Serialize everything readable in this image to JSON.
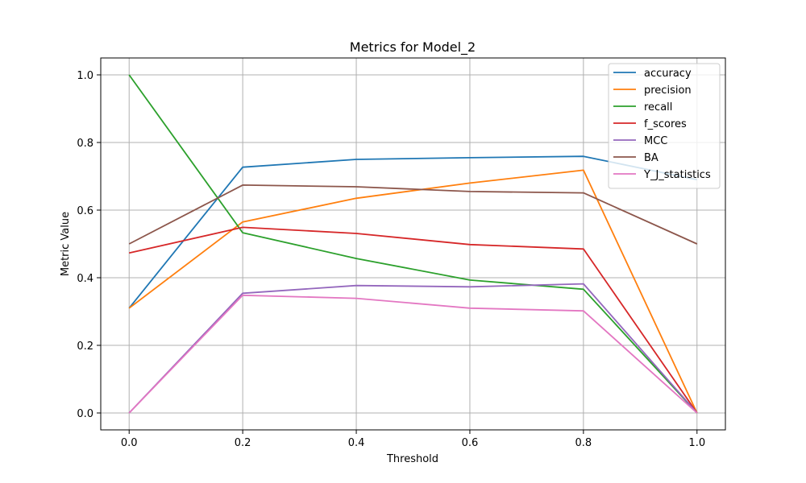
{
  "chart_data": {
    "type": "line",
    "title": "Metrics for Model_2",
    "xlabel": "Threshold",
    "ylabel": "Metric Value",
    "x": [
      0.0,
      0.2,
      0.4,
      0.6,
      0.8,
      1.0
    ],
    "x_ticks": [
      "0.0",
      "0.2",
      "0.4",
      "0.6",
      "0.8",
      "1.0"
    ],
    "y_ticks": [
      "0.0",
      "0.2",
      "0.4",
      "0.6",
      "0.8",
      "1.0"
    ],
    "xlim": [
      -0.05,
      1.05
    ],
    "ylim": [
      -0.05,
      1.05
    ],
    "grid": true,
    "legend_position": "top-right",
    "series": [
      {
        "name": "accuracy",
        "color": "#1f77b4",
        "values": [
          0.31,
          0.727,
          0.75,
          0.755,
          0.759,
          0.69
        ]
      },
      {
        "name": "precision",
        "color": "#ff7f0e",
        "values": [
          0.31,
          0.565,
          0.635,
          0.68,
          0.718,
          0.0
        ]
      },
      {
        "name": "recall",
        "color": "#2ca02c",
        "values": [
          1.0,
          0.533,
          0.457,
          0.393,
          0.366,
          0.0
        ]
      },
      {
        "name": "f_scores",
        "color": "#d62728",
        "values": [
          0.473,
          0.549,
          0.531,
          0.498,
          0.485,
          0.0
        ]
      },
      {
        "name": "MCC",
        "color": "#9467bd",
        "values": [
          0.0,
          0.354,
          0.377,
          0.373,
          0.382,
          0.0
        ]
      },
      {
        "name": "BA",
        "color": "#8c564b",
        "values": [
          0.5,
          0.674,
          0.669,
          0.655,
          0.651,
          0.5
        ]
      },
      {
        "name": "Y_J_statistics",
        "color": "#e377c2",
        "values": [
          0.0,
          0.348,
          0.339,
          0.31,
          0.302,
          0.0
        ]
      }
    ]
  }
}
